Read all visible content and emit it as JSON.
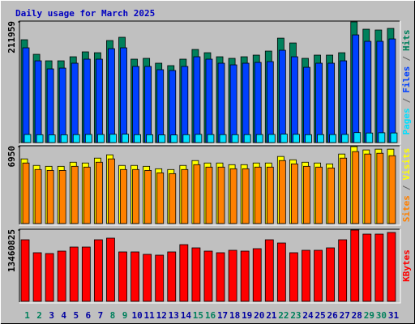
{
  "chart_data": {
    "type": "bar",
    "title": "Daily usage for March 2025",
    "categories": [
      1,
      2,
      3,
      4,
      5,
      6,
      7,
      8,
      9,
      10,
      11,
      12,
      13,
      14,
      15,
      16,
      17,
      18,
      19,
      20,
      21,
      22,
      23,
      24,
      25,
      26,
      27,
      28,
      29,
      30,
      31
    ],
    "category_colors": [
      "#00805c",
      "#00805c",
      "#0000a0",
      "#0000a0",
      "#0000a0",
      "#0000a0",
      "#0000a0",
      "#00805c",
      "#00805c",
      "#0000a0",
      "#0000a0",
      "#0000a0",
      "#0000a0",
      "#0000a0",
      "#00805c",
      "#00805c",
      "#0000a0",
      "#0000a0",
      "#0000a0",
      "#0000a0",
      "#0000a0",
      "#00805c",
      "#00805c",
      "#0000a0",
      "#0000a0",
      "#0000a0",
      "#0000a0",
      "#0000a0",
      "#00805c",
      "#00805c",
      "#0000a0"
    ],
    "separator": "/",
    "panels": [
      {
        "ylim": [
          0,
          211959
        ],
        "yticks": [
          211959
        ],
        "series": [
          {
            "name": "Hits",
            "color": "#00805c",
            "values": [
              180600,
              155000,
              143600,
              143600,
              150700,
              159300,
              157800,
              179200,
              184900,
              146500,
              147900,
              139400,
              135100,
              146500,
              163500,
              157800,
              150700,
              147900,
              150700,
              153600,
              160700,
              183400,
              174900,
              147900,
              153600,
              153600,
              157800,
              211959,
              199100,
              197700,
              200500
            ]
          },
          {
            "name": "Files",
            "color": "#0040ff",
            "values": [
              166400,
              143600,
              129400,
              130800,
              139400,
              146500,
              146500,
              164900,
              166400,
              133700,
              133700,
              128000,
              126600,
              133700,
              150700,
              146500,
              139400,
              136500,
              139400,
              140800,
              142200,
              162100,
              150700,
              132200,
              139400,
              139400,
              143600,
              189100,
              177800,
              177800,
              182000
            ]
          },
          {
            "name": "Pages",
            "color": "#00e0ff",
            "values": [
              14200,
              13800,
              13600,
              13700,
              14000,
              14300,
              14200,
              14600,
              14800,
              13900,
              13800,
              13500,
              13400,
              13900,
              14400,
              14100,
              14000,
              13900,
              14000,
              14100,
              14300,
              14900,
              14500,
              13900,
              14000,
              14100,
              14300,
              17500,
              16800,
              17200,
              16900
            ]
          }
        ]
      },
      {
        "ylim": [
          0,
          6950
        ],
        "yticks": [
          6950
        ],
        "series": [
          {
            "name": "Visits",
            "color": "#ffff00",
            "values": [
              5840,
              5250,
              5170,
              5170,
              5540,
              5470,
              5910,
              6210,
              5250,
              5250,
              5170,
              4950,
              4880,
              5250,
              5690,
              5470,
              5470,
              5320,
              5320,
              5470,
              5470,
              6060,
              5760,
              5540,
              5470,
              5390,
              6280,
              6950,
              6650,
              6720,
              6720
            ]
          },
          {
            "name": "Sites",
            "color": "#ff8000",
            "values": [
              5470,
              4880,
              4800,
              4800,
              5170,
              5100,
              5540,
              5840,
              4880,
              4880,
              4800,
              4580,
              4510,
              4880,
              5320,
              5100,
              5100,
              4950,
              4950,
              5100,
              5100,
              5690,
              5390,
              5170,
              5100,
              5020,
              5910,
              6500,
              6280,
              6350,
              6130
            ]
          }
        ]
      },
      {
        "ylim": [
          0,
          13460825
        ],
        "yticks": [
          13460825
        ],
        "series": [
          {
            "name": "KBytes",
            "color": "#ff0000",
            "values": [
              11626000,
              9178000,
              9025000,
              9484000,
              10249000,
              10249000,
              11626000,
              11931000,
              9331000,
              9331000,
              8872000,
              8719000,
              9331000,
              10707000,
              10096000,
              9484000,
              9178000,
              9637000,
              9484000,
              9943000,
              11626000,
              11013000,
              9178000,
              9637000,
              9637000,
              10096000,
              11626000,
              13460825,
              12696000,
              12696000,
              13002000
            ]
          }
        ]
      }
    ]
  }
}
